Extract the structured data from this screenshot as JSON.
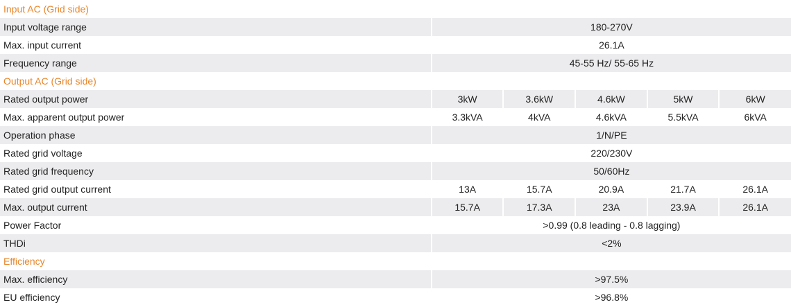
{
  "sections": [
    {
      "title": "Input AC (Grid side)",
      "rows": [
        {
          "label": "Input voltage range",
          "cells": [
            "180-270V"
          ]
        },
        {
          "label": "Max. input current",
          "cells": [
            "26.1A"
          ]
        },
        {
          "label": "Frequency range",
          "cells": [
            "45-55 Hz/ 55-65 Hz"
          ]
        }
      ]
    },
    {
      "title": "Output AC (Grid side)",
      "rows": [
        {
          "label": "Rated output power",
          "cells": [
            "3kW",
            "3.6kW",
            "4.6kW",
            "5kW",
            "6kW"
          ]
        },
        {
          "label": "Max. apparent output power",
          "cells": [
            "3.3kVA",
            "4kVA",
            "4.6kVA",
            "5.5kVA",
            "6kVA"
          ]
        },
        {
          "label": "Operation phase",
          "cells": [
            "1/N/PE"
          ]
        },
        {
          "label": "Rated grid voltage",
          "cells": [
            "220/230V"
          ]
        },
        {
          "label": "Rated grid frequency",
          "cells": [
            "50/60Hz"
          ]
        },
        {
          "label": "Rated grid output current",
          "cells": [
            "13A",
            "15.7A",
            "20.9A",
            "21.7A",
            "26.1A"
          ]
        },
        {
          "label": "Max. output current",
          "cells": [
            "15.7A",
            "17.3A",
            "23A",
            "23.9A",
            "26.1A"
          ]
        },
        {
          "label": "Power Factor",
          "cells": [
            ">0.99 (0.8 leading - 0.8 lagging)"
          ]
        },
        {
          "label": "THDi",
          "cells": [
            "<2%"
          ]
        }
      ]
    },
    {
      "title": "Efficiency",
      "rows": [
        {
          "label": "Max. efficiency",
          "cells": [
            ">97.5%"
          ]
        },
        {
          "label": "EU efficiency",
          "cells": [
            ">96.8%"
          ]
        }
      ]
    }
  ]
}
